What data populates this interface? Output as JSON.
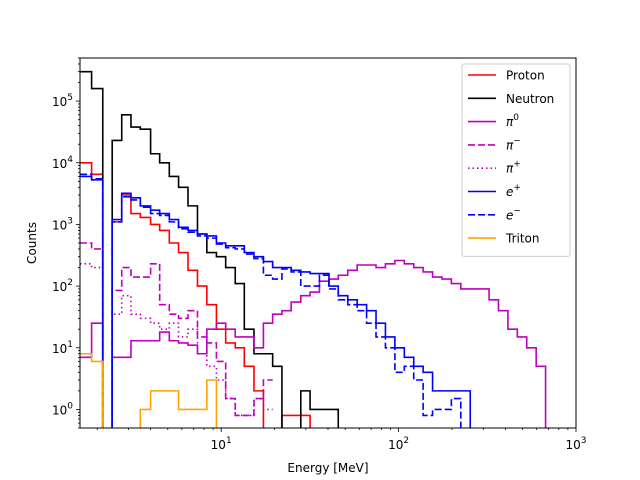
{
  "chart_data": {
    "type": "line",
    "subtype": "step-histogram",
    "xlabel": "Energy [MeV]",
    "ylabel": "Counts",
    "xscale": "log",
    "yscale": "log",
    "xlim": [
      1.6,
      1000
    ],
    "ylim": [
      0.5,
      500000
    ],
    "grid": false,
    "legend_position": "top-right",
    "x_ticks": [
      {
        "value": 10,
        "base": "10",
        "exp": "1"
      },
      {
        "value": 100,
        "base": "10",
        "exp": "2"
      },
      {
        "value": 1000,
        "base": "10",
        "exp": "3"
      }
    ],
    "y_ticks": [
      {
        "value": 1,
        "base": "10",
        "exp": "0"
      },
      {
        "value": 10,
        "base": "10",
        "exp": "1"
      },
      {
        "value": 100,
        "base": "10",
        "exp": "2"
      },
      {
        "value": 1000,
        "base": "10",
        "exp": "3"
      },
      {
        "value": 10000,
        "base": "10",
        "exp": "4"
      },
      {
        "value": 100000,
        "base": "10",
        "exp": "5"
      }
    ],
    "series": [
      {
        "name": "Proton",
        "base": "Proton",
        "sup": "",
        "color": "#ff0000",
        "dash": "solid",
        "edges": [
          1.6,
          1.86,
          2.15,
          2.43,
          2.75,
          3.1,
          3.5,
          4.0,
          4.5,
          5.1,
          5.75,
          6.5,
          7.35,
          8.3,
          9.4,
          10.6,
          12.0,
          13.5,
          15.3,
          17.3,
          19.5,
          22.0,
          24.8,
          28.1,
          31.7,
          35.8
        ],
        "counts": [
          10000,
          6500,
          0.4,
          1100,
          3000,
          1500,
          1300,
          1000,
          800,
          500,
          350,
          180,
          100,
          50,
          20,
          12,
          10,
          5,
          2,
          0.4,
          0.4,
          0.8,
          0.8,
          0.8,
          0.4
        ]
      },
      {
        "name": "Neutron",
        "base": "Neutron",
        "sup": "",
        "color": "#000000",
        "dash": "solid",
        "edges": [
          1.6,
          1.86,
          2.15,
          2.43,
          2.75,
          3.1,
          3.5,
          4.0,
          4.5,
          5.1,
          5.75,
          6.5,
          7.35,
          8.3,
          9.4,
          10.6,
          12.0,
          13.5,
          15.3,
          17.3,
          19.5,
          22.0,
          24.8,
          28.1,
          31.7,
          35.8,
          40.5,
          45.7,
          51.7,
          58.4,
          66.0,
          74.6
        ],
        "counts": [
          300000,
          160000,
          0.4,
          23000,
          60000,
          38000,
          35000,
          14000,
          10000,
          6000,
          4000,
          2000,
          700,
          350,
          300,
          200,
          110,
          20,
          8,
          8,
          5,
          0.4,
          0.4,
          2,
          1,
          1,
          1,
          0.4,
          0.4,
          0.4,
          0.4
        ]
      },
      {
        "name": "π⁰",
        "base": "π",
        "sup": "0",
        "color": "#bf00bf",
        "dash": "solid",
        "edges": [
          1.6,
          1.86,
          2.15,
          2.43,
          2.75,
          3.1,
          3.5,
          4.0,
          4.5,
          5.1,
          5.75,
          6.5,
          7.35,
          8.3,
          9.4,
          10.6,
          12.0,
          13.5,
          15.3,
          17.3,
          19.5,
          22.0,
          24.8,
          28.1,
          31.7,
          35.8,
          40.5,
          45.7,
          51.7,
          58.4,
          66.0,
          74.6,
          84.3,
          95.3,
          107.7,
          121.7,
          137.5,
          155.4,
          175.6,
          198.4,
          224.2,
          253.4,
          286.3,
          323.6,
          365.6,
          413.2,
          466.9,
          527.6,
          596.3,
          673.8,
          761.4
        ],
        "counts": [
          7,
          25,
          0.4,
          7,
          7,
          13,
          13,
          13,
          18,
          13,
          12,
          11,
          8,
          20,
          25,
          20,
          15,
          15,
          10,
          25,
          35,
          40,
          55,
          70,
          80,
          120,
          130,
          150,
          180,
          220,
          220,
          200,
          230,
          260,
          230,
          200,
          170,
          140,
          130,
          110,
          90,
          90,
          90,
          60,
          40,
          20,
          15,
          10,
          5,
          0.4
        ]
      },
      {
        "name": "π⁻",
        "base": "π",
        "sup": "−",
        "color": "#bf00bf",
        "dash": "dashed",
        "edges": [
          1.6,
          1.86,
          2.15,
          2.43,
          2.75,
          3.1,
          3.5,
          4.0,
          4.5,
          5.1,
          5.75,
          6.5,
          7.35,
          8.3,
          9.4,
          10.6,
          12.0,
          13.5,
          15.3,
          17.3,
          19.5
        ],
        "counts": [
          500,
          400,
          0.4,
          85,
          200,
          140,
          140,
          230,
          50,
          35,
          30,
          40,
          15,
          12,
          6,
          1.5,
          0.8,
          0.8,
          1.5,
          3
        ]
      },
      {
        "name": "π⁺",
        "base": "π",
        "sup": "+",
        "color": "#bf00bf",
        "dash": "dotted",
        "edges": [
          1.6,
          1.86,
          2.15,
          2.43,
          2.75,
          3.1,
          3.5,
          4.0,
          4.5,
          5.1,
          5.75,
          6.5,
          7.35,
          8.3,
          9.4,
          10.6,
          12.0,
          13.5,
          15.3,
          17.3,
          19.5
        ],
        "counts": [
          230,
          200,
          0.4,
          35,
          70,
          35,
          30,
          25,
          20,
          25,
          15,
          20,
          8,
          5,
          3,
          1.5,
          0.8,
          0.8,
          1.5,
          1
        ]
      },
      {
        "name": "e⁺",
        "base": "e",
        "sup": "+",
        "color": "#0000ff",
        "dash": "solid",
        "edges": [
          1.6,
          1.86,
          2.15,
          2.43,
          2.75,
          3.1,
          3.5,
          4.0,
          4.5,
          5.1,
          5.75,
          6.5,
          7.35,
          8.3,
          9.4,
          10.6,
          12.0,
          13.5,
          15.3,
          17.3,
          19.5,
          22.0,
          24.8,
          28.1,
          31.7,
          35.8,
          40.5,
          45.7,
          51.7,
          58.4,
          66.0,
          74.6,
          84.3,
          95.3,
          107.7,
          121.7,
          137.5,
          155.4,
          175.6,
          198.4,
          224.2,
          253.4,
          286.3
        ],
        "counts": [
          6000,
          5300,
          0.4,
          1200,
          3200,
          2700,
          2000,
          1700,
          1500,
          1200,
          900,
          800,
          700,
          650,
          500,
          450,
          450,
          350,
          300,
          250,
          200,
          200,
          180,
          170,
          160,
          160,
          100,
          70,
          60,
          50,
          40,
          25,
          15,
          10,
          7,
          5,
          4,
          2,
          2,
          2,
          2,
          0.4
        ]
      },
      {
        "name": "e⁻",
        "base": "e",
        "sup": "−",
        "color": "#0000ff",
        "dash": "dashed",
        "edges": [
          1.6,
          1.86,
          2.15,
          2.43,
          2.75,
          3.1,
          3.5,
          4.0,
          4.5,
          5.1,
          5.75,
          6.5,
          7.35,
          8.3,
          9.4,
          10.6,
          12.0,
          13.5,
          15.3,
          17.3,
          19.5,
          22.0,
          24.8,
          28.1,
          31.7,
          35.8,
          40.5,
          45.7,
          51.7,
          58.4,
          66.0,
          74.6,
          84.3,
          95.3,
          107.7,
          121.7,
          137.5,
          155.4,
          175.6,
          198.4,
          224.2,
          253.4
        ],
        "counts": [
          6500,
          5500,
          0.4,
          1100,
          2800,
          2500,
          1900,
          1500,
          1400,
          1100,
          850,
          750,
          650,
          600,
          480,
          420,
          400,
          330,
          280,
          150,
          130,
          190,
          170,
          100,
          100,
          150,
          90,
          60,
          50,
          40,
          25,
          15,
          10,
          4,
          5,
          3,
          0.8,
          1,
          1,
          1.5,
          0.4
        ]
      },
      {
        "name": "Triton",
        "base": "Triton",
        "sup": "",
        "color": "#ffa500",
        "dash": "solid",
        "edges": [
          1.6,
          1.86,
          2.15,
          2.43,
          2.75,
          3.1,
          3.5,
          4.0,
          4.5,
          5.1,
          5.75,
          6.5,
          7.35,
          8.3,
          9.4
        ],
        "counts": [
          8,
          6,
          0.4,
          0.4,
          0.4,
          0.4,
          1,
          2,
          2,
          2,
          1,
          1,
          1,
          3,
          0.4
        ]
      }
    ]
  }
}
